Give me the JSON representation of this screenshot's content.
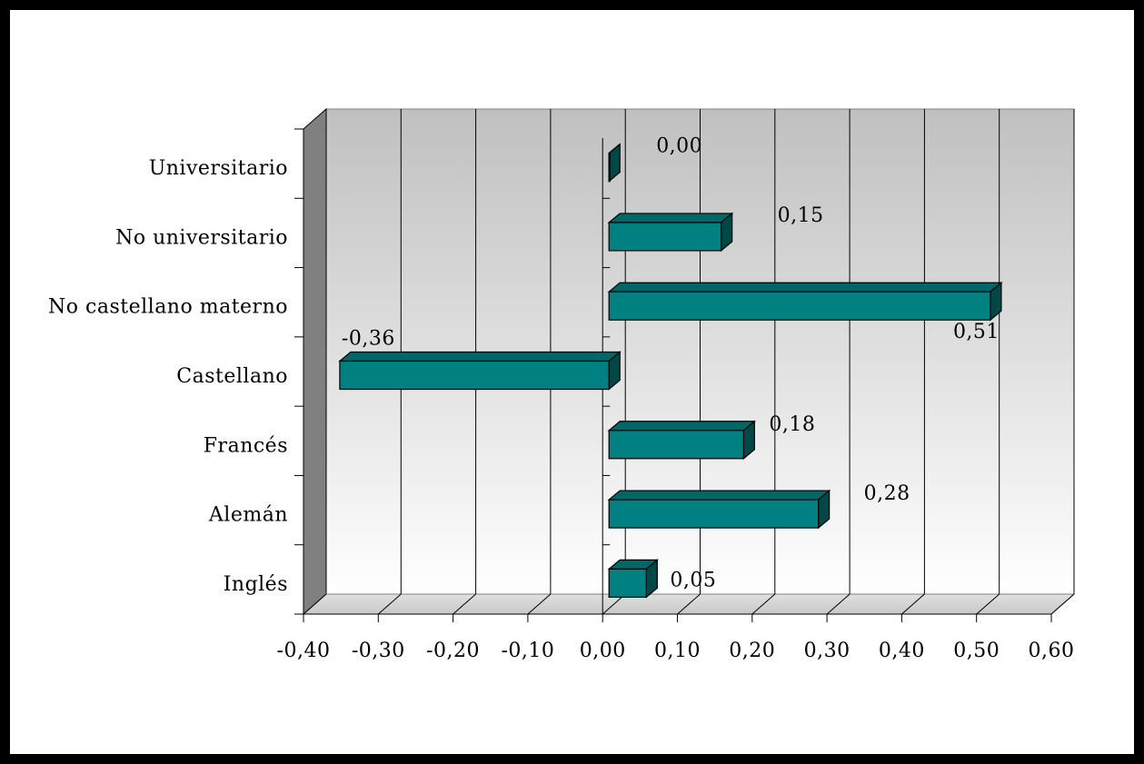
{
  "chart_data": {
    "type": "bar",
    "orientation": "horizontal",
    "categories": [
      "Universitario",
      "No universitario",
      "No castellano materno",
      "Castellano",
      "Francés",
      "Alemán",
      "Inglés"
    ],
    "values": [
      0.0,
      0.15,
      0.51,
      -0.36,
      0.18,
      0.28,
      0.05
    ],
    "value_labels": [
      "0,00",
      "0,15",
      "0,51",
      "-0,36",
      "0,18",
      "0,28",
      "0,05"
    ],
    "x_ticks": [
      "-0,40",
      "-0,30",
      "-0,20",
      "-0,10",
      "0,00",
      "0,10",
      "0,20",
      "0,30",
      "0,40",
      "0,50",
      "0,60"
    ],
    "xlim": [
      -0.4,
      0.6
    ],
    "grid": true,
    "legend": "none",
    "style_3d": true,
    "colors": {
      "bar_front": "#008080",
      "bar_top": "#006666",
      "bar_side": "#004848",
      "wall_top": "#c0c0c0",
      "wall_bottom": "#ffffff",
      "side_wall": "#808080",
      "floor": "#d4d4d4",
      "frame": "#000000"
    }
  }
}
